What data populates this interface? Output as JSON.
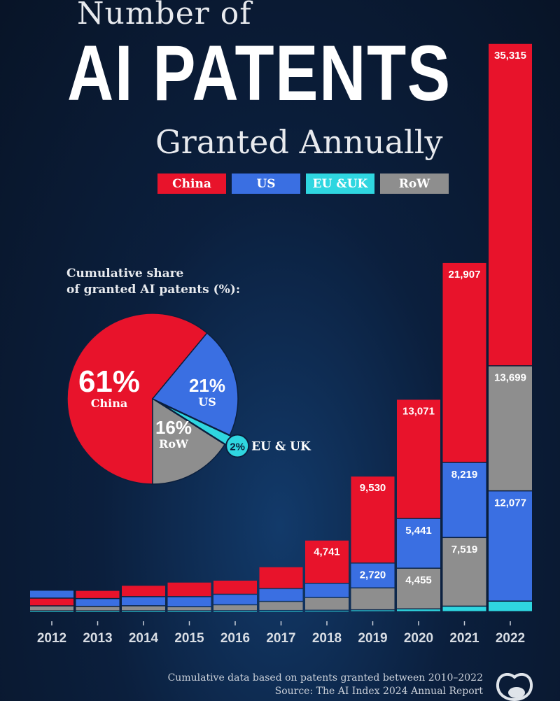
{
  "title": {
    "line1": "Number of",
    "line2": "AI PATENTS",
    "line3": "Granted Annually"
  },
  "colors": {
    "China": "#e8132b",
    "US": "#3a6fe2",
    "EU & UK": "#2fd6e0",
    "RoW": "#8e8e8e",
    "background": "#0b1f3d"
  },
  "legend": [
    {
      "label": "China",
      "key": "China"
    },
    {
      "label": "US",
      "key": "US"
    },
    {
      "label": "EU &UK",
      "key": "EU & UK"
    },
    {
      "label": "RoW",
      "key": "RoW"
    }
  ],
  "pie_title": {
    "line1": "Cumulative share",
    "line2": "of granted AI patents (%):"
  },
  "footer": {
    "note": "Cumulative data based on patents granted between 2010–2022",
    "source": "Source: The AI Index 2024 Annual Report"
  },
  "logo_icon": "visual-capitalist-logo-icon",
  "chart_data": [
    {
      "type": "bar",
      "stacked": true,
      "stack_order": "largest on top",
      "categories": [
        "2012",
        "2013",
        "2014",
        "2015",
        "2016",
        "2017",
        "2018",
        "2019",
        "2020",
        "2021",
        "2022"
      ],
      "series": [
        {
          "name": "China",
          "values": [
            850,
            900,
            1250,
            1600,
            1550,
            2400,
            4741,
            9530,
            13071,
            21907,
            35315
          ]
        },
        {
          "name": "US",
          "values": [
            870,
            850,
            1000,
            1100,
            1150,
            1400,
            1550,
            2720,
            5441,
            8219,
            12077
          ]
        },
        {
          "name": "EU & UK",
          "values": [
            80,
            80,
            90,
            90,
            100,
            120,
            150,
            200,
            300,
            600,
            1150
          ]
        },
        {
          "name": "RoW",
          "values": [
            550,
            500,
            550,
            450,
            650,
            1000,
            1400,
            2400,
            4455,
            7519,
            13699
          ]
        }
      ],
      "data_labels": {
        "2018": {
          "China": "4,741"
        },
        "2019": {
          "China": "9,530",
          "US": "2,720"
        },
        "2020": {
          "China": "13,071",
          "US": "5,441",
          "RoW": "4,455"
        },
        "2021": {
          "China": "21,907",
          "US": "8,219",
          "RoW": "7,519"
        },
        "2022": {
          "China": "35,315",
          "RoW": "13,699",
          "US": "12,077"
        }
      },
      "ylim": [
        0,
        62300
      ],
      "grid": false
    },
    {
      "type": "pie",
      "title": "Cumulative share of granted AI patents (%):",
      "slices": [
        {
          "name": "China",
          "label": "China",
          "value": 61,
          "text": "61%"
        },
        {
          "name": "US",
          "label": "US",
          "value": 21,
          "text": "21%"
        },
        {
          "name": "EU & UK",
          "label": "EU & UK",
          "value": 2,
          "text": "2%",
          "exploded": true
        },
        {
          "name": "RoW",
          "label": "RoW",
          "value": 16,
          "text": "16%"
        }
      ]
    }
  ]
}
